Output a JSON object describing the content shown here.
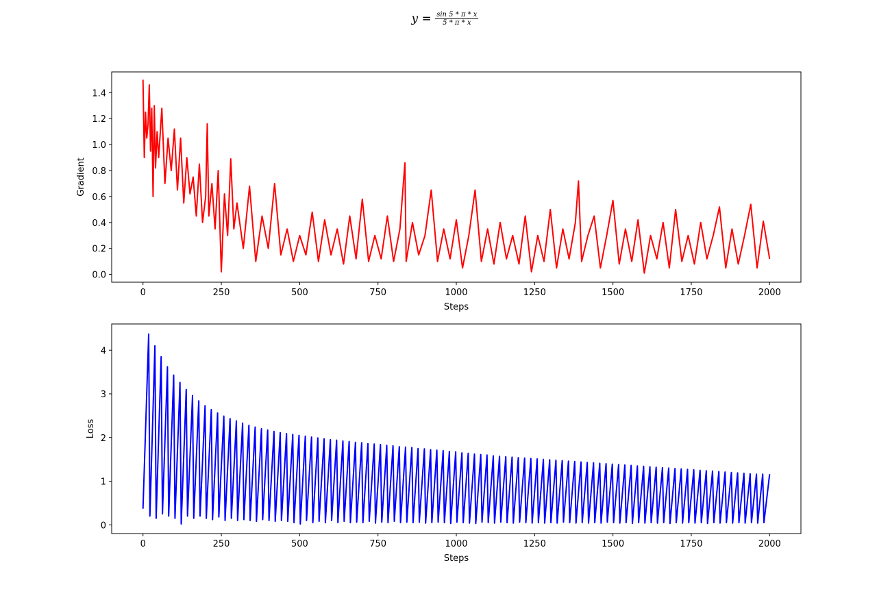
{
  "figure": {
    "suptitle": {
      "lhs": "y =",
      "numerator": "sin 5 * π * x",
      "denominator": "5 * π * x"
    }
  },
  "chart_data": [
    {
      "type": "line",
      "xlabel": "Steps",
      "ylabel": "Gradient",
      "xlim": [
        -100,
        2100
      ],
      "ylim": [
        -0.06,
        1.56
      ],
      "xticks": [
        0,
        250,
        500,
        750,
        1000,
        1250,
        1500,
        1750,
        2000
      ],
      "yticks": [
        0.0,
        0.2,
        0.4,
        0.6,
        0.8,
        1.0,
        1.2,
        1.4
      ],
      "ytick_labels": [
        "0.0",
        "0.2",
        "0.4",
        "0.6",
        "0.8",
        "1.0",
        "1.2",
        "1.4"
      ],
      "grid": false,
      "color": "#ff0000",
      "series": [
        {
          "x": [
            0,
            4,
            8,
            12,
            16,
            20,
            24,
            28,
            32,
            36,
            40,
            45,
            50,
            60,
            70,
            80,
            90,
            100,
            110,
            120,
            130,
            140,
            150,
            160,
            170,
            180,
            190,
            200,
            205,
            210,
            220,
            230,
            240,
            250,
            260,
            270,
            280,
            290,
            300,
            320,
            340,
            360,
            380,
            400,
            420,
            440,
            460,
            480,
            500,
            520,
            540,
            560,
            580,
            600,
            620,
            640,
            660,
            680,
            700,
            720,
            740,
            760,
            780,
            800,
            820,
            836,
            840,
            860,
            880,
            900,
            920,
            940,
            960,
            980,
            1000,
            1020,
            1040,
            1060,
            1080,
            1100,
            1120,
            1140,
            1160,
            1180,
            1200,
            1220,
            1240,
            1260,
            1280,
            1300,
            1320,
            1340,
            1360,
            1380,
            1390,
            1400,
            1420,
            1440,
            1460,
            1480,
            1500,
            1520,
            1540,
            1560,
            1580,
            1600,
            1620,
            1640,
            1660,
            1680,
            1700,
            1720,
            1740,
            1760,
            1780,
            1800,
            1820,
            1840,
            1860,
            1880,
            1900,
            1920,
            1940,
            1960,
            1980,
            2000
          ],
          "y": [
            1.5,
            0.9,
            1.25,
            1.05,
            1.15,
            1.46,
            0.95,
            1.28,
            0.6,
            1.3,
            0.82,
            1.1,
            0.9,
            1.28,
            0.7,
            1.05,
            0.8,
            1.12,
            0.65,
            1.05,
            0.55,
            0.9,
            0.62,
            0.75,
            0.45,
            0.85,
            0.4,
            0.6,
            1.16,
            0.45,
            0.7,
            0.35,
            0.8,
            0.02,
            0.62,
            0.3,
            0.89,
            0.35,
            0.55,
            0.2,
            0.68,
            0.1,
            0.45,
            0.2,
            0.7,
            0.15,
            0.35,
            0.1,
            0.3,
            0.15,
            0.48,
            0.1,
            0.42,
            0.15,
            0.35,
            0.08,
            0.45,
            0.12,
            0.58,
            0.1,
            0.3,
            0.12,
            0.45,
            0.1,
            0.35,
            0.86,
            0.1,
            0.4,
            0.15,
            0.3,
            0.65,
            0.1,
            0.35,
            0.12,
            0.42,
            0.05,
            0.3,
            0.65,
            0.1,
            0.35,
            0.08,
            0.4,
            0.12,
            0.3,
            0.08,
            0.45,
            0.02,
            0.3,
            0.1,
            0.5,
            0.05,
            0.35,
            0.12,
            0.4,
            0.72,
            0.1,
            0.3,
            0.45,
            0.05,
            0.3,
            0.57,
            0.08,
            0.35,
            0.1,
            0.42,
            0.01,
            0.3,
            0.12,
            0.4,
            0.05,
            0.5,
            0.1,
            0.3,
            0.08,
            0.4,
            0.12,
            0.3,
            0.52,
            0.05,
            0.35,
            0.08,
            0.3,
            0.54,
            0.05,
            0.41,
            0.12
          ]
        }
      ]
    },
    {
      "type": "line",
      "xlabel": "Steps",
      "ylabel": "Loss",
      "xlim": [
        -100,
        2100
      ],
      "ylim": [
        -0.2,
        4.6
      ],
      "xticks": [
        0,
        250,
        500,
        750,
        1000,
        1250,
        1500,
        1750,
        2000
      ],
      "yticks": [
        0,
        1,
        2,
        3,
        4
      ],
      "ytick_labels": [
        "0",
        "1",
        "2",
        "3",
        "4"
      ],
      "grid": false,
      "color": "#0000ff",
      "series": [
        {
          "x": [
            0,
            18,
            22,
            38,
            42,
            58,
            62,
            78,
            82,
            98,
            102,
            118,
            122,
            138,
            142,
            158,
            162,
            178,
            182,
            198,
            202,
            218,
            222,
            238,
            242,
            258,
            262,
            278,
            282,
            298,
            302,
            318,
            322,
            338,
            342,
            358,
            362,
            378,
            382,
            398,
            402,
            418,
            422,
            438,
            442,
            458,
            462,
            478,
            482,
            498,
            502,
            518,
            522,
            538,
            542,
            558,
            562,
            578,
            582,
            598,
            602,
            618,
            622,
            638,
            642,
            658,
            662,
            678,
            682,
            698,
            702,
            718,
            722,
            738,
            742,
            758,
            762,
            778,
            782,
            798,
            802,
            818,
            822,
            838,
            842,
            858,
            862,
            878,
            882,
            898,
            902,
            918,
            922,
            938,
            942,
            958,
            962,
            978,
            982,
            998,
            1002,
            1018,
            1022,
            1038,
            1042,
            1058,
            1062,
            1078,
            1082,
            1098,
            1102,
            1118,
            1122,
            1138,
            1142,
            1158,
            1162,
            1178,
            1182,
            1198,
            1202,
            1218,
            1222,
            1238,
            1242,
            1258,
            1262,
            1278,
            1282,
            1298,
            1302,
            1318,
            1322,
            1338,
            1342,
            1358,
            1362,
            1378,
            1382,
            1398,
            1402,
            1418,
            1422,
            1438,
            1442,
            1458,
            1462,
            1478,
            1482,
            1498,
            1502,
            1518,
            1522,
            1538,
            1542,
            1558,
            1562,
            1578,
            1582,
            1598,
            1602,
            1618,
            1622,
            1638,
            1642,
            1658,
            1662,
            1678,
            1682,
            1698,
            1702,
            1718,
            1722,
            1738,
            1742,
            1758,
            1762,
            1778,
            1782,
            1798,
            1802,
            1818,
            1822,
            1838,
            1842,
            1858,
            1862,
            1878,
            1882,
            1898,
            1902,
            1918,
            1922,
            1938,
            1942,
            1958,
            1962,
            1978,
            1982,
            2000
          ],
          "y": [
            0.37,
            4.37,
            0.2,
            4.1,
            0.15,
            3.85,
            0.25,
            3.62,
            0.2,
            3.43,
            0.15,
            3.26,
            0.02,
            3.1,
            0.2,
            2.96,
            0.15,
            2.84,
            0.2,
            2.73,
            0.15,
            2.64,
            0.12,
            2.56,
            0.18,
            2.49,
            0.1,
            2.43,
            0.15,
            2.38,
            0.1,
            2.33,
            0.12,
            2.28,
            0.1,
            2.24,
            0.08,
            2.2,
            0.12,
            2.17,
            0.1,
            2.14,
            0.08,
            2.11,
            0.1,
            2.09,
            0.08,
            2.07,
            0.05,
            2.05,
            0.02,
            2.03,
            0.1,
            2.01,
            0.05,
            1.99,
            0.08,
            1.97,
            0.05,
            1.95,
            0.1,
            1.94,
            0.05,
            1.92,
            0.08,
            1.91,
            0.05,
            1.89,
            0.06,
            1.88,
            0.05,
            1.86,
            0.08,
            1.85,
            0.04,
            1.84,
            0.06,
            1.82,
            0.05,
            1.81,
            0.08,
            1.79,
            0.05,
            1.78,
            0.06,
            1.77,
            0.05,
            1.75,
            0.06,
            1.74,
            0.04,
            1.72,
            0.05,
            1.71,
            0.06,
            1.7,
            0.05,
            1.68,
            0.03,
            1.67,
            0.06,
            1.65,
            0.05,
            1.64,
            0.04,
            1.62,
            0.03,
            1.61,
            0.06,
            1.6,
            0.05,
            1.58,
            0.04,
            1.57,
            0.06,
            1.56,
            0.05,
            1.55,
            0.04,
            1.54,
            0.06,
            1.53,
            0.05,
            1.52,
            0.04,
            1.51,
            0.05,
            1.5,
            0.04,
            1.49,
            0.05,
            1.48,
            0.04,
            1.47,
            0.06,
            1.46,
            0.05,
            1.45,
            0.04,
            1.44,
            0.05,
            1.43,
            0.04,
            1.42,
            0.05,
            1.41,
            0.04,
            1.4,
            0.06,
            1.39,
            0.05,
            1.38,
            0.04,
            1.37,
            0.05,
            1.36,
            0.03,
            1.35,
            0.05,
            1.34,
            0.04,
            1.33,
            0.05,
            1.32,
            0.04,
            1.31,
            0.05,
            1.3,
            0.03,
            1.29,
            0.05,
            1.28,
            0.04,
            1.27,
            0.05,
            1.26,
            0.04,
            1.25,
            0.05,
            1.24,
            0.03,
            1.23,
            0.05,
            1.22,
            0.04,
            1.21,
            0.05,
            1.2,
            0.04,
            1.19,
            0.05,
            1.18,
            0.04,
            1.17,
            0.05,
            1.16,
            0.04,
            1.16,
            0.05,
            1.16
          ]
        }
      ]
    }
  ]
}
